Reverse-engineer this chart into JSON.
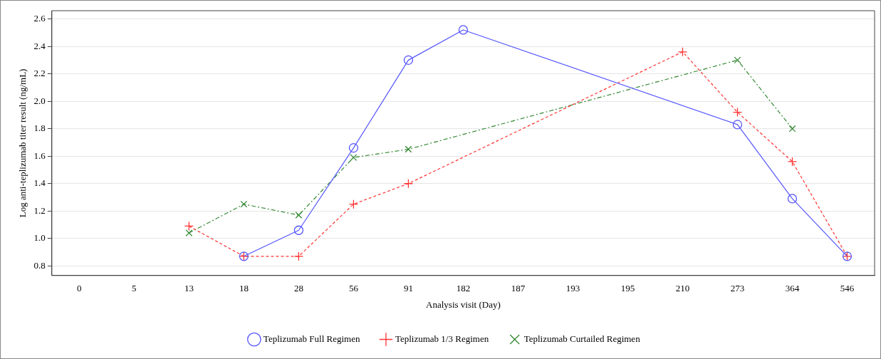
{
  "chart_data": {
    "type": "line",
    "xlabel": "Analysis visit (Day)",
    "ylabel": "Log anti-teplizumab titer result (ng/mL)",
    "categories": [
      "0",
      "5",
      "13",
      "18",
      "28",
      "56",
      "91",
      "182",
      "187",
      "193",
      "195",
      "210",
      "273",
      "364",
      "546"
    ],
    "series": [
      {
        "name": "Teplizumab Full Regimen",
        "color": "#5555ff",
        "marker": "circle",
        "line_style": "solid",
        "values": [
          null,
          null,
          null,
          0.87,
          1.06,
          1.66,
          2.3,
          2.52,
          null,
          null,
          null,
          null,
          1.83,
          1.29,
          0.87
        ]
      },
      {
        "name": "Teplizumab 1/3 Regimen",
        "color": "#ff3333",
        "marker": "cross",
        "line_style": "dashed",
        "values": [
          null,
          null,
          1.09,
          0.87,
          0.87,
          1.25,
          1.4,
          null,
          null,
          null,
          null,
          2.36,
          1.92,
          1.56,
          0.87
        ]
      },
      {
        "name": "Teplizumab Curtailed Regimen",
        "color": "#338833",
        "marker": "x",
        "line_style": "dashdot",
        "values": [
          null,
          null,
          1.04,
          1.25,
          1.17,
          1.59,
          1.65,
          null,
          null,
          null,
          null,
          null,
          2.3,
          1.8,
          null
        ]
      }
    ],
    "ylim": [
      0.73,
      2.66
    ],
    "yticks": [
      0.8,
      {
        "value": 1,
        "label": "1.0"
      },
      1.2,
      1.4,
      1.6,
      1.8,
      {
        "value": 2,
        "label": "2.0"
      },
      2.2,
      2.4,
      2.6
    ],
    "grid": "y",
    "legend": "bottom"
  }
}
